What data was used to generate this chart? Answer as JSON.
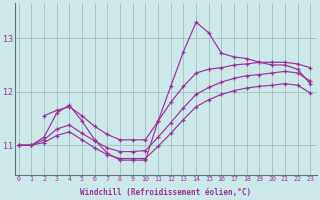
{
  "xlabel": "Windchill (Refroidissement éolien,°C)",
  "bg_color": "#cce8e8",
  "line_color": "#993399",
  "grid_color": "#99bbbb",
  "yticks": [
    11,
    12,
    13
  ],
  "xticks": [
    0,
    1,
    2,
    3,
    4,
    5,
    6,
    7,
    8,
    9,
    10,
    11,
    12,
    13,
    14,
    15,
    16,
    17,
    18,
    19,
    20,
    21,
    22,
    23
  ],
  "ylim": [
    10.45,
    13.65
  ],
  "xlim": [
    -0.3,
    23.5
  ],
  "series": {
    "spike_x": [
      0,
      1,
      2,
      3,
      4,
      5,
      6,
      7,
      8,
      9,
      10,
      11,
      12,
      13,
      14,
      15,
      16,
      17,
      18,
      19,
      20,
      21,
      22,
      23
    ],
    "spike_y": [
      11.0,
      11.0,
      11.15,
      11.6,
      11.75,
      11.45,
      11.1,
      10.85,
      10.72,
      10.72,
      10.72,
      11.45,
      12.1,
      12.75,
      13.3,
      13.1,
      12.72,
      12.65,
      12.62,
      12.55,
      12.5,
      12.5,
      12.42,
      12.15
    ],
    "upper_x": [
      2,
      3,
      4,
      5,
      6,
      7,
      8,
      9,
      10,
      11,
      12,
      13,
      14,
      15,
      16,
      17,
      18,
      19,
      20,
      21,
      22,
      23
    ],
    "upper_y": [
      11.55,
      11.65,
      11.72,
      11.55,
      11.35,
      11.2,
      11.1,
      11.1,
      11.1,
      11.45,
      11.8,
      12.1,
      12.35,
      12.42,
      12.45,
      12.5,
      12.52,
      12.55,
      12.55,
      12.55,
      12.52,
      12.45
    ],
    "mid_x": [
      0,
      1,
      2,
      3,
      4,
      5,
      6,
      7,
      8,
      9,
      10,
      11,
      12,
      13,
      14,
      15,
      16,
      17,
      18,
      19,
      20,
      21,
      22,
      23
    ],
    "mid_y": [
      11.0,
      11.0,
      11.1,
      11.3,
      11.38,
      11.22,
      11.08,
      10.95,
      10.88,
      10.88,
      10.9,
      11.15,
      11.42,
      11.7,
      11.95,
      12.08,
      12.18,
      12.25,
      12.3,
      12.32,
      12.35,
      12.38,
      12.35,
      12.2
    ],
    "lower_x": [
      0,
      1,
      2,
      3,
      4,
      5,
      6,
      7,
      8,
      9,
      10,
      11,
      12,
      13,
      14,
      15,
      16,
      17,
      18,
      19,
      20,
      21,
      22,
      23
    ],
    "lower_y": [
      11.0,
      11.0,
      11.05,
      11.18,
      11.25,
      11.1,
      10.95,
      10.82,
      10.75,
      10.75,
      10.75,
      10.98,
      11.22,
      11.48,
      11.72,
      11.85,
      11.95,
      12.02,
      12.07,
      12.1,
      12.12,
      12.15,
      12.12,
      11.98
    ]
  }
}
